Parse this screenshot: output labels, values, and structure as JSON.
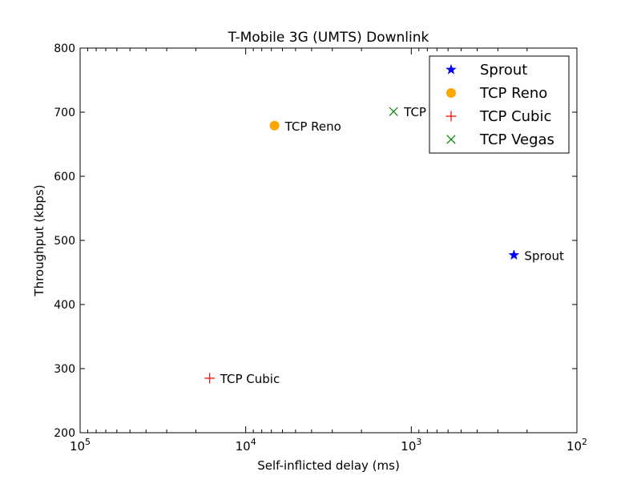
{
  "chart_data": {
    "type": "scatter",
    "title": "T-Mobile 3G (UMTS) Downlink",
    "xlabel": "Self-inflicted delay (ms)",
    "ylabel": "Throughput (kbps)",
    "xscale": "log",
    "xaxis_reversed": true,
    "xlim": [
      100000,
      100
    ],
    "ylim": [
      200,
      800
    ],
    "x_ticks": [
      {
        "value": 100000,
        "base": "10",
        "exp": "5"
      },
      {
        "value": 10000,
        "base": "10",
        "exp": "4"
      },
      {
        "value": 1000,
        "base": "10",
        "exp": "3"
      },
      {
        "value": 100,
        "base": "10",
        "exp": "2"
      }
    ],
    "y_ticks": [
      "200",
      "300",
      "400",
      "500",
      "600",
      "700",
      "800"
    ],
    "grid": false,
    "legend_position": "top-right",
    "series": [
      {
        "name": "Sprout",
        "marker": "star",
        "color": "#0000ff",
        "x": 240,
        "y": 477,
        "label": "Sprout"
      },
      {
        "name": "TCP Reno",
        "marker": "circle",
        "color": "#ffa500",
        "x": 6700,
        "y": 679,
        "label": "TCP Reno"
      },
      {
        "name": "TCP Cubic",
        "marker": "plus",
        "color": "#ff0000",
        "x": 16500,
        "y": 285,
        "label": "TCP Cubic"
      },
      {
        "name": "TCP Vegas",
        "marker": "x",
        "color": "#008000",
        "x": 1280,
        "y": 701,
        "label": "TCP Vegas"
      }
    ]
  }
}
